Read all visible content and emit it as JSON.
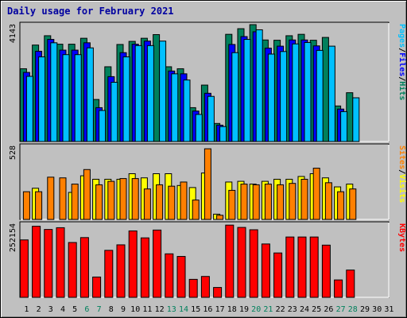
{
  "title": "Daily usage for February 2021",
  "colors": {
    "hits": "#00805c",
    "files": "#0000ff",
    "pages": "#00c0ff",
    "visits": "#ffff00",
    "sites": "#ff8000",
    "kbytes": "#ff0000",
    "weekend_day_label": "#00805c",
    "weekday_day_label": "#000000"
  },
  "chart_data": [
    {
      "type": "bar",
      "name": "hits-files-pages",
      "scale_label": "4143",
      "ylim": [
        0,
        4143
      ],
      "legend": [
        {
          "text": "Hits",
          "color": "#00805c"
        },
        {
          "text": "Files",
          "color": "#0000ff"
        },
        {
          "text": "Pages",
          "color": "#00c0ff"
        }
      ],
      "legend_seps": [
        "/",
        "/"
      ],
      "categories": [
        "1",
        "2",
        "3",
        "4",
        "5",
        "6",
        "7",
        "8",
        "9",
        "10",
        "11",
        "12",
        "13",
        "14",
        "15",
        "16",
        "17",
        "18",
        "19",
        "20",
        "21",
        "22",
        "23",
        "24",
        "25",
        "26",
        "27",
        "28",
        "29",
        "30",
        "31"
      ],
      "series": [
        {
          "name": "Hits",
          "color": "#00805c",
          "values": [
            2580,
            3420,
            3750,
            3450,
            3450,
            3660,
            1490,
            2650,
            3440,
            3550,
            3660,
            3790,
            2650,
            2580,
            1200,
            2000,
            640,
            3800,
            4000,
            4143,
            3600,
            3590,
            3750,
            3800,
            3590,
            3690,
            1260,
            1730,
            null,
            null,
            null
          ]
        },
        {
          "name": "Files",
          "color": "#0000ff",
          "values": [
            2450,
            3200,
            3620,
            3240,
            3240,
            3500,
            1200,
            2300,
            3150,
            3450,
            3560,
            null,
            2500,
            2400,
            1080,
            1710,
            580,
            3440,
            3720,
            3890,
            3310,
            3380,
            3600,
            3600,
            3390,
            null,
            1150,
            null,
            null,
            null,
            null
          ]
        },
        {
          "name": "Pages",
          "color": "#00c0ff",
          "values": [
            2310,
            3000,
            3500,
            3080,
            3080,
            3320,
            1100,
            2100,
            3000,
            3400,
            3400,
            3560,
            2400,
            2180,
            960,
            1600,
            530,
            3150,
            3620,
            3960,
            3100,
            3190,
            3460,
            3510,
            3230,
            3380,
            1060,
            1550,
            null,
            null,
            null
          ]
        }
      ]
    },
    {
      "type": "bar",
      "name": "visits-sites",
      "scale_label": "528",
      "ylim": [
        0,
        528
      ],
      "legend": [
        {
          "text": "Visits",
          "color": "#ffff00"
        },
        {
          "text": "Sites",
          "color": "#ff8000"
        }
      ],
      "legend_seps": [
        "/"
      ],
      "categories": [
        "1",
        "2",
        "3",
        "4",
        "5",
        "6",
        "7",
        "8",
        "9",
        "10",
        "11",
        "12",
        "13",
        "14",
        "15",
        "16",
        "17",
        "18",
        "19",
        "20",
        "21",
        "22",
        "23",
        "24",
        "25",
        "26",
        "27",
        "28",
        "29",
        "30",
        "31"
      ],
      "series": [
        {
          "name": "Visits",
          "color": "#ffff00",
          "values": [
            null,
            225,
            null,
            null,
            195,
            315,
            290,
            290,
            290,
            330,
            300,
            330,
            330,
            245,
            230,
            335,
            38,
            270,
            275,
            255,
            275,
            290,
            290,
            310,
            330,
            300,
            235,
            255,
            null,
            null,
            null
          ]
        },
        {
          "name": "Sites",
          "color": "#ff8000",
          "values": [
            200,
            200,
            305,
            300,
            255,
            360,
            250,
            275,
            295,
            295,
            220,
            250,
            240,
            270,
            140,
            510,
            30,
            210,
            255,
            250,
            255,
            250,
            260,
            290,
            370,
            265,
            200,
            220,
            null,
            null,
            null
          ]
        }
      ]
    },
    {
      "type": "bar",
      "name": "kbytes",
      "scale_label": "252154",
      "ylim": [
        0,
        252154
      ],
      "legend": [
        {
          "text": "KBytes",
          "color": "#ff0000"
        }
      ],
      "legend_seps": [],
      "categories": [
        "1",
        "2",
        "3",
        "4",
        "5",
        "6",
        "7",
        "8",
        "9",
        "10",
        "11",
        "12",
        "13",
        "14",
        "15",
        "16",
        "17",
        "18",
        "19",
        "20",
        "21",
        "22",
        "23",
        "24",
        "25",
        "26",
        "27",
        "28",
        "29",
        "30",
        "31"
      ],
      "series": [
        {
          "name": "KBytes",
          "color": "#ff0000",
          "values": [
            198000,
            245000,
            234000,
            240000,
            189000,
            206000,
            70000,
            162000,
            181000,
            229000,
            205000,
            232000,
            150000,
            141000,
            62000,
            72000,
            34000,
            249000,
            241000,
            233000,
            184000,
            153000,
            208000,
            208000,
            208000,
            180000,
            60000,
            94000,
            null,
            null,
            null
          ]
        }
      ]
    }
  ],
  "day_label_colors": [
    "#000000",
    "#000000",
    "#000000",
    "#000000",
    "#000000",
    "#00805c",
    "#00805c",
    "#000000",
    "#000000",
    "#000000",
    "#000000",
    "#000000",
    "#00805c",
    "#00805c",
    "#000000",
    "#000000",
    "#000000",
    "#000000",
    "#000000",
    "#00805c",
    "#00805c",
    "#000000",
    "#000000",
    "#000000",
    "#000000",
    "#000000",
    "#00805c",
    "#00805c",
    "#000000",
    "#000000",
    "#000000"
  ]
}
